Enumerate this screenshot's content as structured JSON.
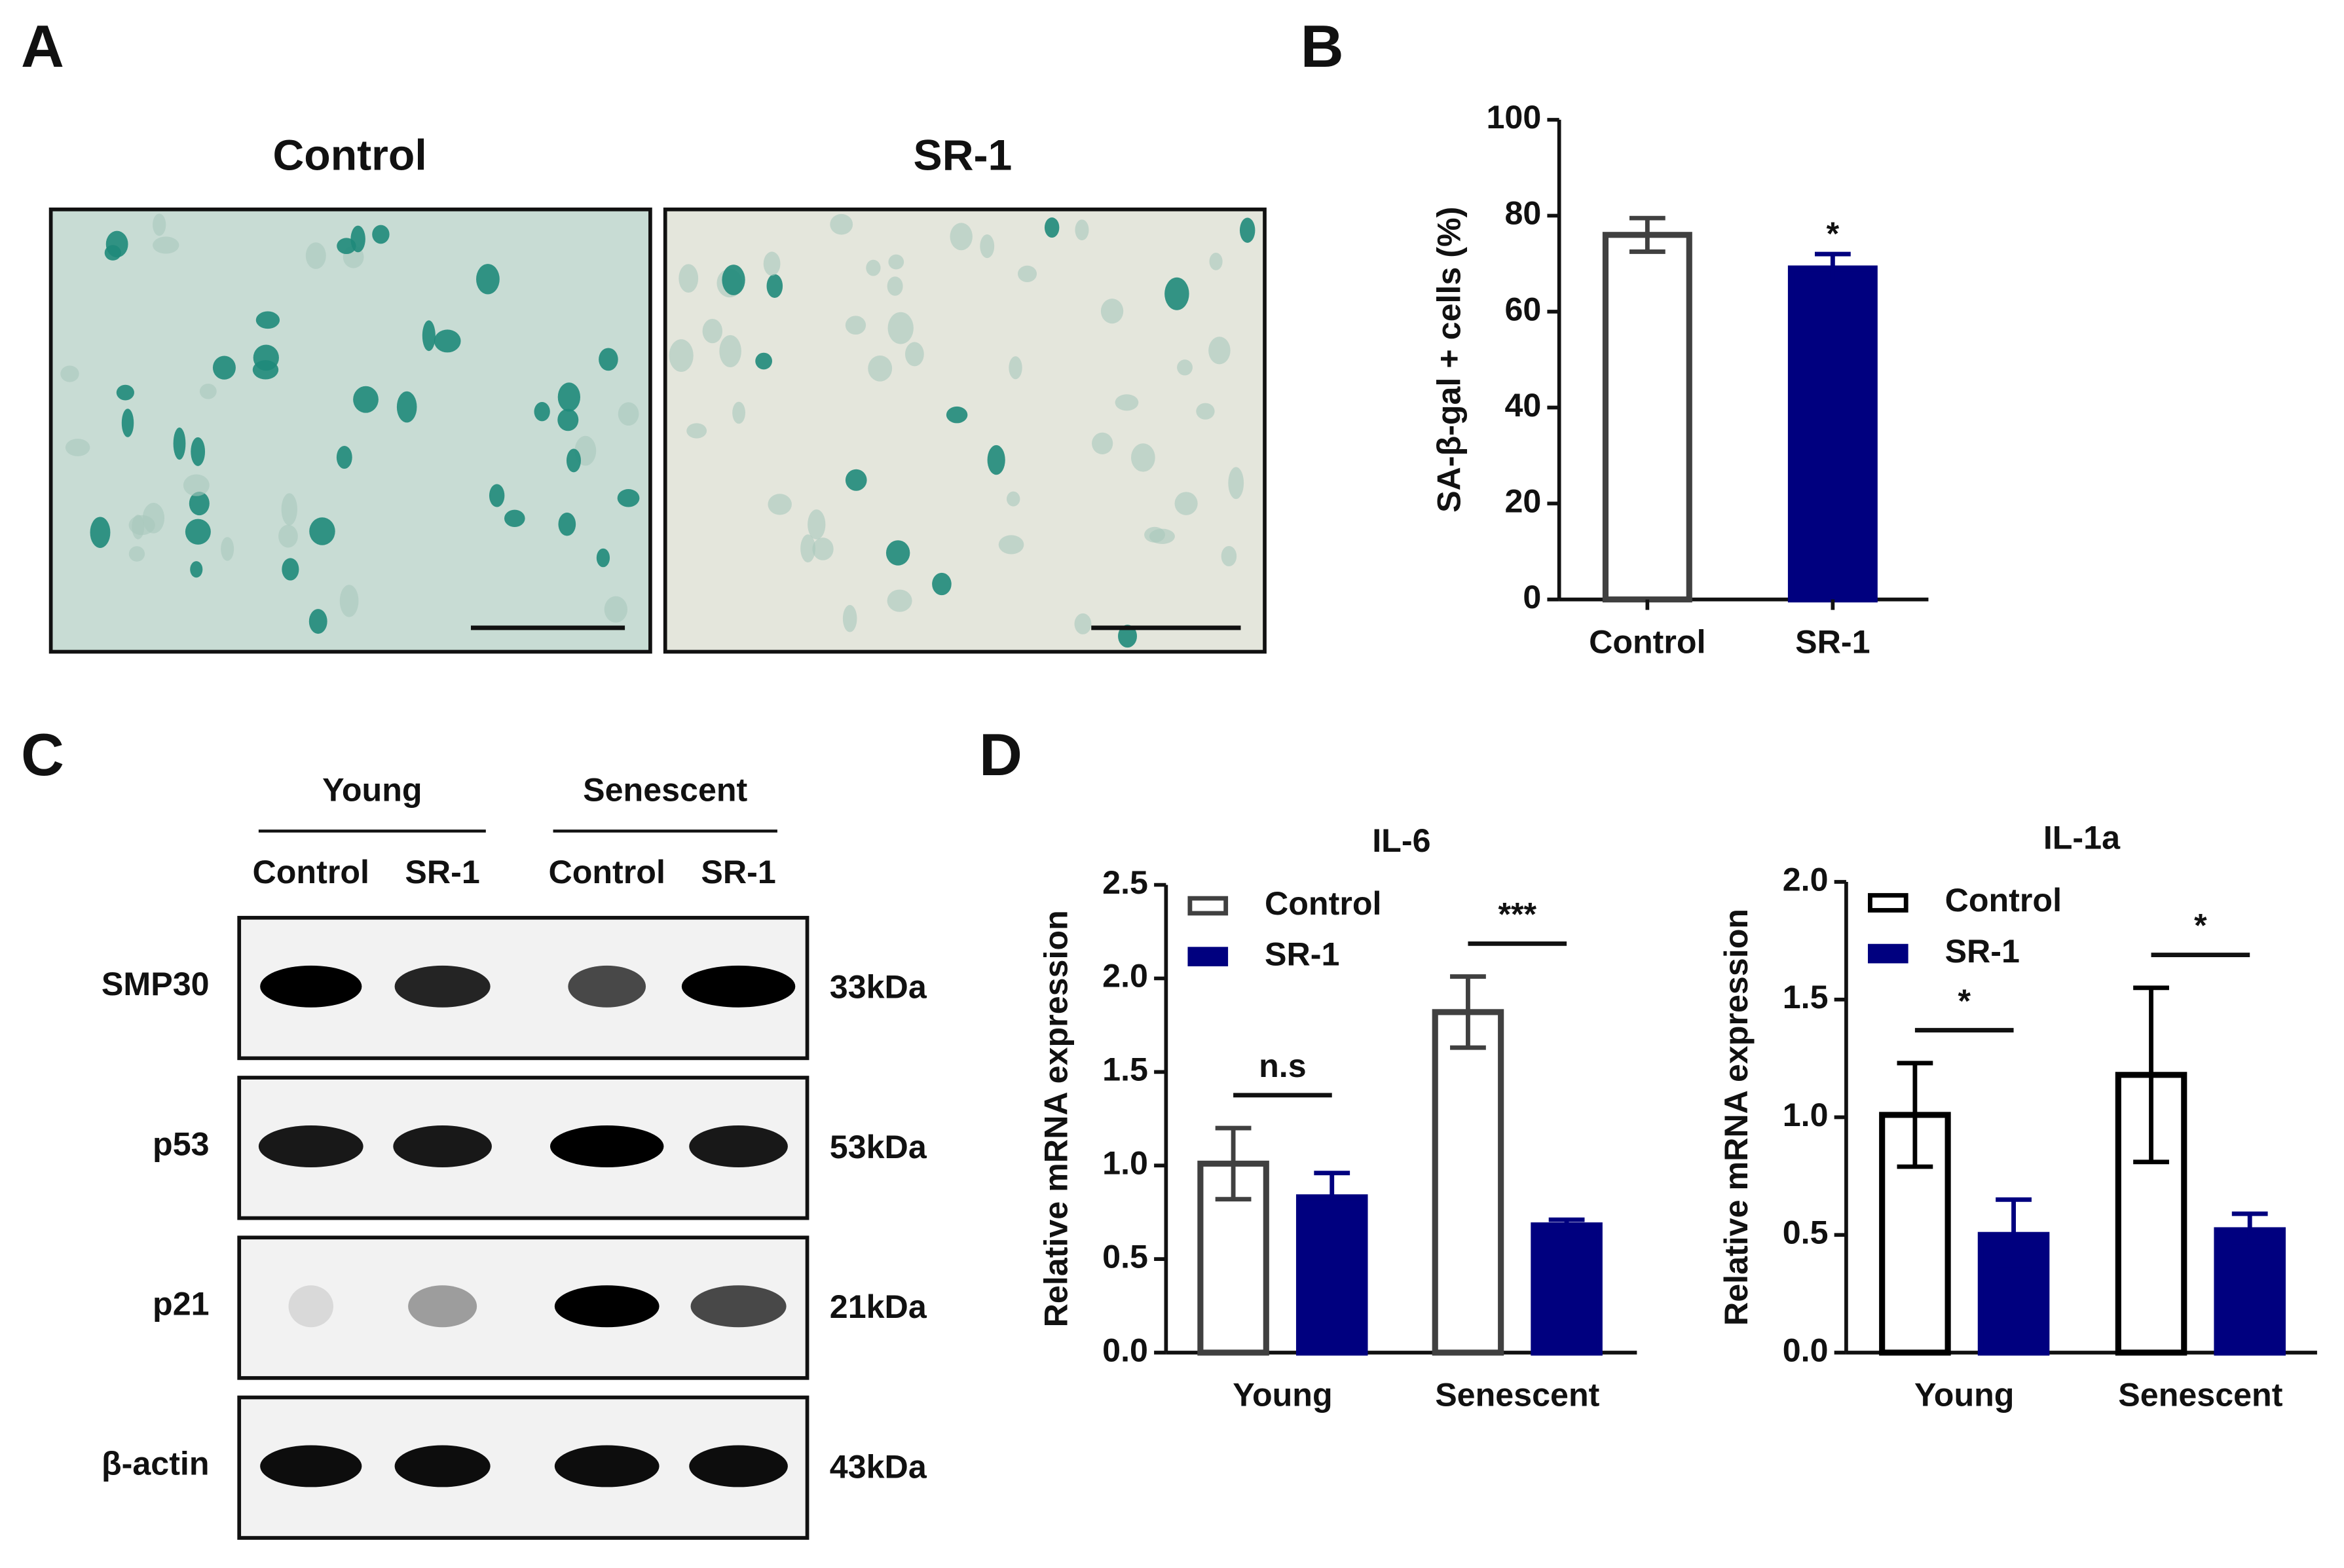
{
  "panels": {
    "a": "A",
    "b": "B",
    "c": "C",
    "d": "D"
  },
  "panel_a": {
    "titles": [
      "Control",
      "SR-1"
    ]
  },
  "panel_c": {
    "groups": [
      "Young",
      "Senescent"
    ],
    "lanes": [
      "Control",
      "SR-1",
      "Control",
      "SR-1"
    ],
    "rows": [
      {
        "name": "SMP30",
        "size": "33kDa"
      },
      {
        "name": "p53",
        "size": "53kDa"
      },
      {
        "name": "p21",
        "size": "21kDa"
      },
      {
        "name": "β-actin",
        "size": "43kDa"
      }
    ]
  },
  "chart_data": [
    {
      "type": "bar",
      "ylabel": "SA-β-gal + cells (%)",
      "categories": [
        "Control",
        "SR-1"
      ],
      "values": [
        76,
        69
      ],
      "errors": [
        3.5,
        3
      ],
      "colors": [
        "#ffffff",
        "#00007f"
      ],
      "edge_colors": [
        "#404040",
        "#00007f"
      ],
      "annotations": [
        null,
        "*"
      ],
      "ylim": [
        0,
        100
      ],
      "yticks": [
        0,
        20,
        40,
        60,
        80,
        100
      ],
      "grid": false
    },
    {
      "type": "grouped_bar",
      "title": "IL-6",
      "ylabel": "Relative mRNA expression",
      "categories": [
        "Young",
        "Senescent"
      ],
      "series": [
        {
          "name": "Control",
          "color": "#ffffff",
          "edge_color": "#404040",
          "values": [
            1.01,
            1.82
          ],
          "errors": [
            0.19,
            0.19
          ]
        },
        {
          "name": "SR-1",
          "color": "#00007f",
          "edge_color": "#00007f",
          "values": [
            0.83,
            0.68
          ],
          "errors": [
            0.13,
            0.03
          ]
        }
      ],
      "annotations": [
        "n.s",
        "***"
      ],
      "ylim": [
        0,
        2.5
      ],
      "yticks": [
        {
          "value": 0,
          "label": "0.0"
        },
        0.5,
        {
          "value": 1,
          "label": "1.0"
        },
        1.5,
        {
          "value": 2,
          "label": "2.0"
        },
        2.5
      ],
      "legend": "upper left",
      "grid": false
    },
    {
      "type": "grouped_bar",
      "title": "IL-1a",
      "ylabel": "Relative mRNA expression",
      "categories": [
        "Young",
        "Senescent"
      ],
      "series": [
        {
          "name": "Control",
          "color": "#ffffff",
          "edge_color": "#000000",
          "values": [
            1.01,
            1.18
          ],
          "errors": [
            0.22,
            0.37
          ]
        },
        {
          "name": "SR-1",
          "color": "#00007f",
          "edge_color": "#00007f",
          "values": [
            0.5,
            0.52
          ],
          "errors": [
            0.15,
            0.07
          ]
        }
      ],
      "annotations": [
        "*",
        "*"
      ],
      "ylim": [
        0,
        2
      ],
      "yticks": [
        {
          "value": 0,
          "label": "0.0"
        },
        0.5,
        {
          "value": 1,
          "label": "1.0"
        },
        1.5,
        {
          "value": 2,
          "label": "2.0"
        }
      ],
      "legend": "upper left",
      "grid": false
    }
  ]
}
